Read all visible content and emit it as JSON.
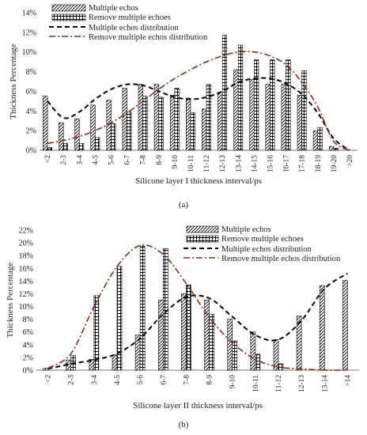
{
  "chart_data": [
    {
      "type": "bar",
      "panel_label": "(a)",
      "xlabel": "Silicone layer I thickness interval/ps",
      "ylabel": "Thickness Percentage",
      "ylim": [
        0,
        14
      ],
      "yticks": [
        "0%",
        "2%",
        "4%",
        "6%",
        "8%",
        "10%",
        "12%",
        "14%"
      ],
      "categories": [
        "<2",
        "2-3",
        "3-4",
        "4-5",
        "5-6",
        "6-7",
        "7-8",
        "8-9",
        "9-10",
        "10-11",
        "11-12",
        "12-13",
        "13-14",
        "14-15",
        "15-16",
        "16-17",
        "17-18",
        "18-19",
        "19-20",
        ">20"
      ],
      "series": [
        {
          "name": "Multiple echos",
          "pattern": "diagonal",
          "values": [
            5.5,
            2.8,
            3.2,
            4.6,
            5.1,
            6.3,
            6.7,
            6.7,
            5.6,
            5.3,
            4.2,
            5.9,
            8.2,
            7.2,
            6.7,
            6.7,
            5.6,
            2.0,
            0.4,
            0
          ]
        },
        {
          "name": "Remove multiple echoes",
          "pattern": "grid",
          "values": [
            0.3,
            0.7,
            0.7,
            1.3,
            2.7,
            3.9,
            5.5,
            5.4,
            6.3,
            3.8,
            6.7,
            11.7,
            10.7,
            9.2,
            9.2,
            9.2,
            8.1,
            2.3,
            0.2,
            0
          ]
        }
      ],
      "lines": [
        {
          "name": "Multiple echos distribution",
          "style": "dashed",
          "color": "#000000",
          "values": [
            5.0,
            3.3,
            3.9,
            5.2,
            6.2,
            6.7,
            6.6,
            6.0,
            5.4,
            5.2,
            5.4,
            6.0,
            6.9,
            7.3,
            7.3,
            6.8,
            5.7,
            3.8,
            1.2,
            0
          ]
        },
        {
          "name": "Remove multiple echos distribution",
          "style": "dashdot",
          "color": "#8B2F14",
          "values": [
            0.7,
            1.0,
            1.4,
            2.0,
            2.8,
            3.8,
            5.0,
            6.2,
            7.3,
            8.2,
            9.0,
            9.6,
            10.0,
            10.0,
            9.6,
            8.7,
            6.9,
            4.4,
            0.9,
            0
          ]
        }
      ]
    },
    {
      "type": "bar",
      "panel_label": "(b)",
      "xlabel": "Silicone layer II thickness interval/ps",
      "ylabel": "Thickness Percentage",
      "ylim": [
        0,
        22
      ],
      "yticks": [
        "0%",
        "2%",
        "4%",
        "6%",
        "8%",
        "10%",
        "12%",
        "14%",
        "16%",
        "18%",
        "20%",
        "22%"
      ],
      "categories": [
        "<2",
        "2-3",
        "3-4",
        "4-5",
        "5-6",
        "6-7",
        "7-8",
        "8-9",
        "9-10",
        "10-11",
        "11-12",
        "12-13",
        "13-14",
        ">14"
      ],
      "series": [
        {
          "name": "Multiple echos",
          "pattern": "diagonal",
          "values": [
            0.3,
            1.6,
            1.7,
            2.4,
            5.5,
            11.0,
            12.0,
            11.0,
            8.0,
            6.0,
            4.8,
            8.5,
            13.3,
            14.1
          ]
        },
        {
          "name": "Remove multiple echoes",
          "pattern": "grid",
          "values": [
            0,
            2.3,
            11.7,
            16.3,
            19.5,
            19.1,
            13.4,
            8.8,
            4.6,
            2.5,
            1.0,
            0,
            0,
            0
          ]
        }
      ],
      "lines": [
        {
          "name": "Multiple echos distribution",
          "style": "dashed",
          "color": "#000000",
          "values": [
            0.2,
            1.0,
            1.6,
            2.6,
            5.0,
            8.8,
            11.5,
            11.3,
            8.4,
            5.5,
            4.8,
            7.8,
            12.8,
            15.2
          ]
        },
        {
          "name": "Remove multiple echos distribution",
          "style": "dashdot",
          "color": "#8B2F14",
          "values": [
            0.3,
            2.6,
            10.0,
            16.3,
            19.6,
            18.2,
            13.6,
            8.3,
            4.3,
            1.7,
            0.5,
            0.2,
            0,
            0
          ]
        }
      ]
    }
  ]
}
